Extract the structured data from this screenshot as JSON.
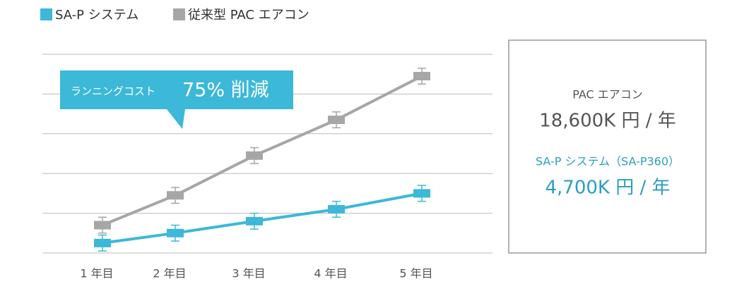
{
  "chart_data": {
    "type": "line",
    "categories": [
      "1 年目",
      "2 年目",
      "3 年目",
      "4 年目",
      "5 年目"
    ],
    "series": [
      {
        "name": "SA-P システム",
        "color": "#3cb8d8",
        "values": [
          0.25,
          0.5,
          0.8,
          1.1,
          1.5
        ],
        "errors": [
          0.2,
          0.2,
          0.2,
          0.2,
          0.2
        ]
      },
      {
        "name": "従来型 PAC エアコン",
        "color": "#a6a6a6",
        "values": [
          0.7,
          1.45,
          2.45,
          3.35,
          4.45
        ],
        "errors": [
          0.2,
          0.2,
          0.2,
          0.2,
          0.2
        ]
      }
    ],
    "ylim": [
      0,
      5
    ],
    "yticks": [
      0,
      1,
      2,
      3,
      4,
      5
    ],
    "grid": true,
    "annotation": {
      "label": "ランニングコスト",
      "value": "75% 削減",
      "color": "#3cb8d8"
    }
  },
  "summary": [
    {
      "label": "PAC エアコン",
      "value": "18,600K 円 / 年",
      "color": "#555555"
    },
    {
      "label": "SA-P システム（SA-P360）",
      "value": "4,700K 円 / 年",
      "color": "#2a9fbd"
    }
  ]
}
